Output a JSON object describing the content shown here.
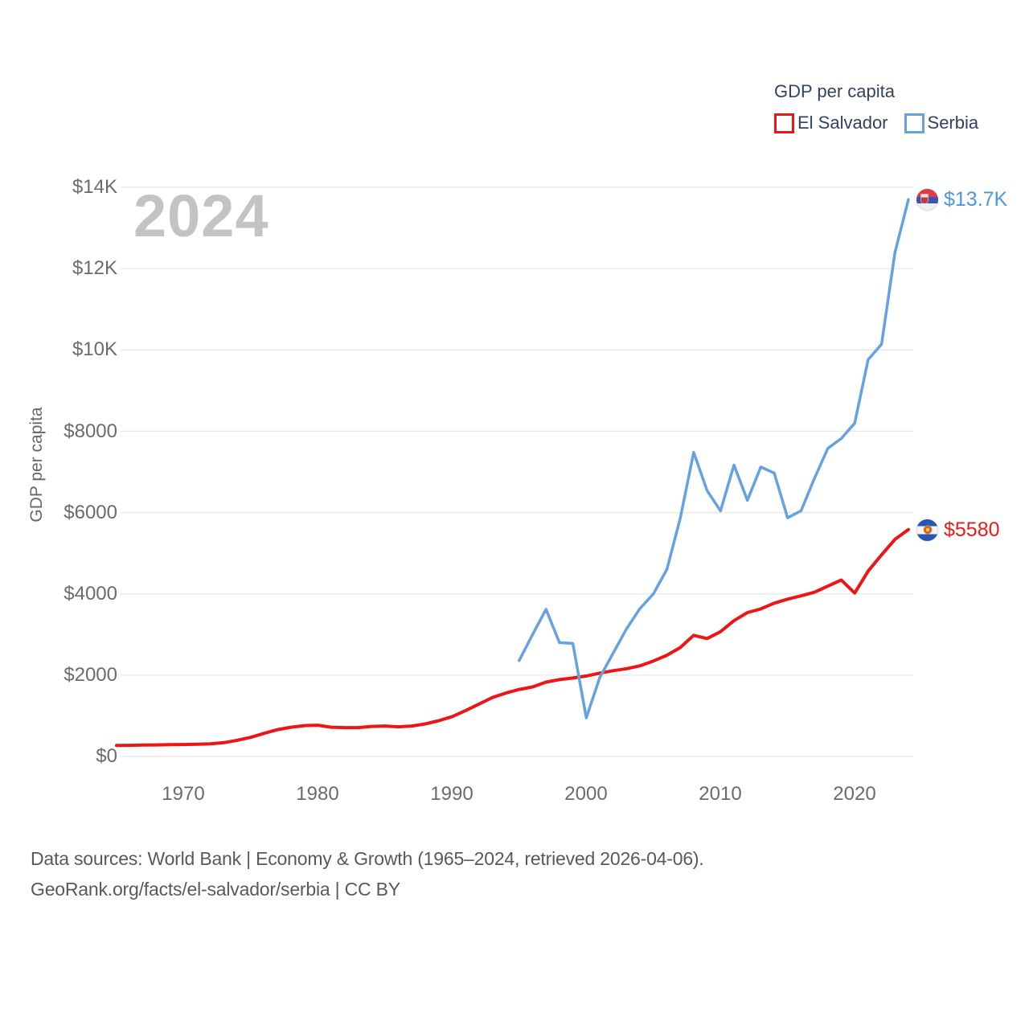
{
  "legend": {
    "title": "GDP per capita",
    "items": [
      {
        "label": "El Salvador",
        "color": "#ed1515"
      },
      {
        "label": "Serbia",
        "color": "#66a1e0"
      }
    ]
  },
  "watermark": "2024",
  "y_axis": {
    "title": "GDP per capita",
    "ticks": [
      {
        "label": "$14K",
        "value": 14000
      },
      {
        "label": "$12K",
        "value": 12000
      },
      {
        "label": "$10K",
        "value": 10000
      },
      {
        "label": "$8000",
        "value": 8000
      },
      {
        "label": "$6000",
        "value": 6000
      },
      {
        "label": "$4000",
        "value": 4000
      },
      {
        "label": "$2000",
        "value": 2000
      },
      {
        "label": "$0",
        "value": 0
      }
    ]
  },
  "x_axis": {
    "ticks": [
      {
        "label": "1970",
        "value": 1970
      },
      {
        "label": "1980",
        "value": 1980
      },
      {
        "label": "1990",
        "value": 1990
      },
      {
        "label": "2000",
        "value": 2000
      },
      {
        "label": "2010",
        "value": 2010
      },
      {
        "label": "2020",
        "value": 2020
      }
    ]
  },
  "end_labels": [
    {
      "series": "Serbia",
      "label": "$13.7K"
    },
    {
      "series": "El Salvador",
      "label": "$5580"
    }
  ],
  "footer": {
    "line1": "Data sources: World Bank | Economy & Growth (1965–2024, retrieved 2026-04-06).",
    "line2": "GeoRank.org/facts/el-salvador/serbia | CC BY"
  },
  "chart_data": {
    "type": "line",
    "title": "GDP per capita",
    "ylabel": "GDP per capita",
    "x_range": [
      1965,
      2024
    ],
    "y_range": [
      0,
      14000
    ],
    "grid": true,
    "legend_position": "top-right",
    "series": [
      {
        "name": "El Salvador",
        "color": "#ed1515",
        "stroke_width": 4,
        "end_label": "$5580",
        "points": [
          [
            1965,
            270
          ],
          [
            1966,
            275
          ],
          [
            1967,
            280
          ],
          [
            1968,
            285
          ],
          [
            1969,
            290
          ],
          [
            1970,
            295
          ],
          [
            1971,
            300
          ],
          [
            1972,
            310
          ],
          [
            1973,
            340
          ],
          [
            1974,
            400
          ],
          [
            1975,
            470
          ],
          [
            1976,
            570
          ],
          [
            1977,
            660
          ],
          [
            1978,
            720
          ],
          [
            1979,
            760
          ],
          [
            1980,
            770
          ],
          [
            1981,
            720
          ],
          [
            1982,
            710
          ],
          [
            1983,
            710
          ],
          [
            1984,
            740
          ],
          [
            1985,
            750
          ],
          [
            1986,
            730
          ],
          [
            1987,
            750
          ],
          [
            1988,
            800
          ],
          [
            1989,
            880
          ],
          [
            1990,
            980
          ],
          [
            1991,
            1130
          ],
          [
            1992,
            1290
          ],
          [
            1993,
            1450
          ],
          [
            1994,
            1560
          ],
          [
            1995,
            1650
          ],
          [
            1996,
            1710
          ],
          [
            1997,
            1830
          ],
          [
            1998,
            1890
          ],
          [
            1999,
            1930
          ],
          [
            2000,
            1980
          ],
          [
            2001,
            2050
          ],
          [
            2002,
            2110
          ],
          [
            2003,
            2160
          ],
          [
            2004,
            2230
          ],
          [
            2005,
            2350
          ],
          [
            2006,
            2490
          ],
          [
            2007,
            2680
          ],
          [
            2008,
            2980
          ],
          [
            2009,
            2900
          ],
          [
            2010,
            3070
          ],
          [
            2011,
            3340
          ],
          [
            2012,
            3540
          ],
          [
            2013,
            3630
          ],
          [
            2014,
            3770
          ],
          [
            2015,
            3870
          ],
          [
            2016,
            3950
          ],
          [
            2017,
            4040
          ],
          [
            2018,
            4190
          ],
          [
            2019,
            4340
          ],
          [
            2020,
            4020
          ],
          [
            2021,
            4560
          ],
          [
            2022,
            4960
          ],
          [
            2023,
            5340
          ],
          [
            2024,
            5580
          ]
        ]
      },
      {
        "name": "Serbia",
        "color": "#66a1e0",
        "stroke_width": 3.5,
        "end_label": "$13.7K",
        "points": [
          [
            1995,
            2360
          ],
          [
            1996,
            3000
          ],
          [
            1997,
            3620
          ],
          [
            1998,
            2800
          ],
          [
            1999,
            2780
          ],
          [
            2000,
            950
          ],
          [
            2001,
            1940
          ],
          [
            2002,
            2540
          ],
          [
            2003,
            3140
          ],
          [
            2004,
            3640
          ],
          [
            2005,
            4000
          ],
          [
            2006,
            4600
          ],
          [
            2007,
            5860
          ],
          [
            2008,
            7480
          ],
          [
            2009,
            6540
          ],
          [
            2010,
            6040
          ],
          [
            2011,
            7170
          ],
          [
            2012,
            6300
          ],
          [
            2013,
            7120
          ],
          [
            2014,
            6970
          ],
          [
            2015,
            5870
          ],
          [
            2016,
            6040
          ],
          [
            2017,
            6840
          ],
          [
            2018,
            7580
          ],
          [
            2019,
            7820
          ],
          [
            2020,
            8200
          ],
          [
            2021,
            9760
          ],
          [
            2022,
            10140
          ],
          [
            2023,
            12400
          ],
          [
            2024,
            13700
          ]
        ]
      }
    ]
  }
}
